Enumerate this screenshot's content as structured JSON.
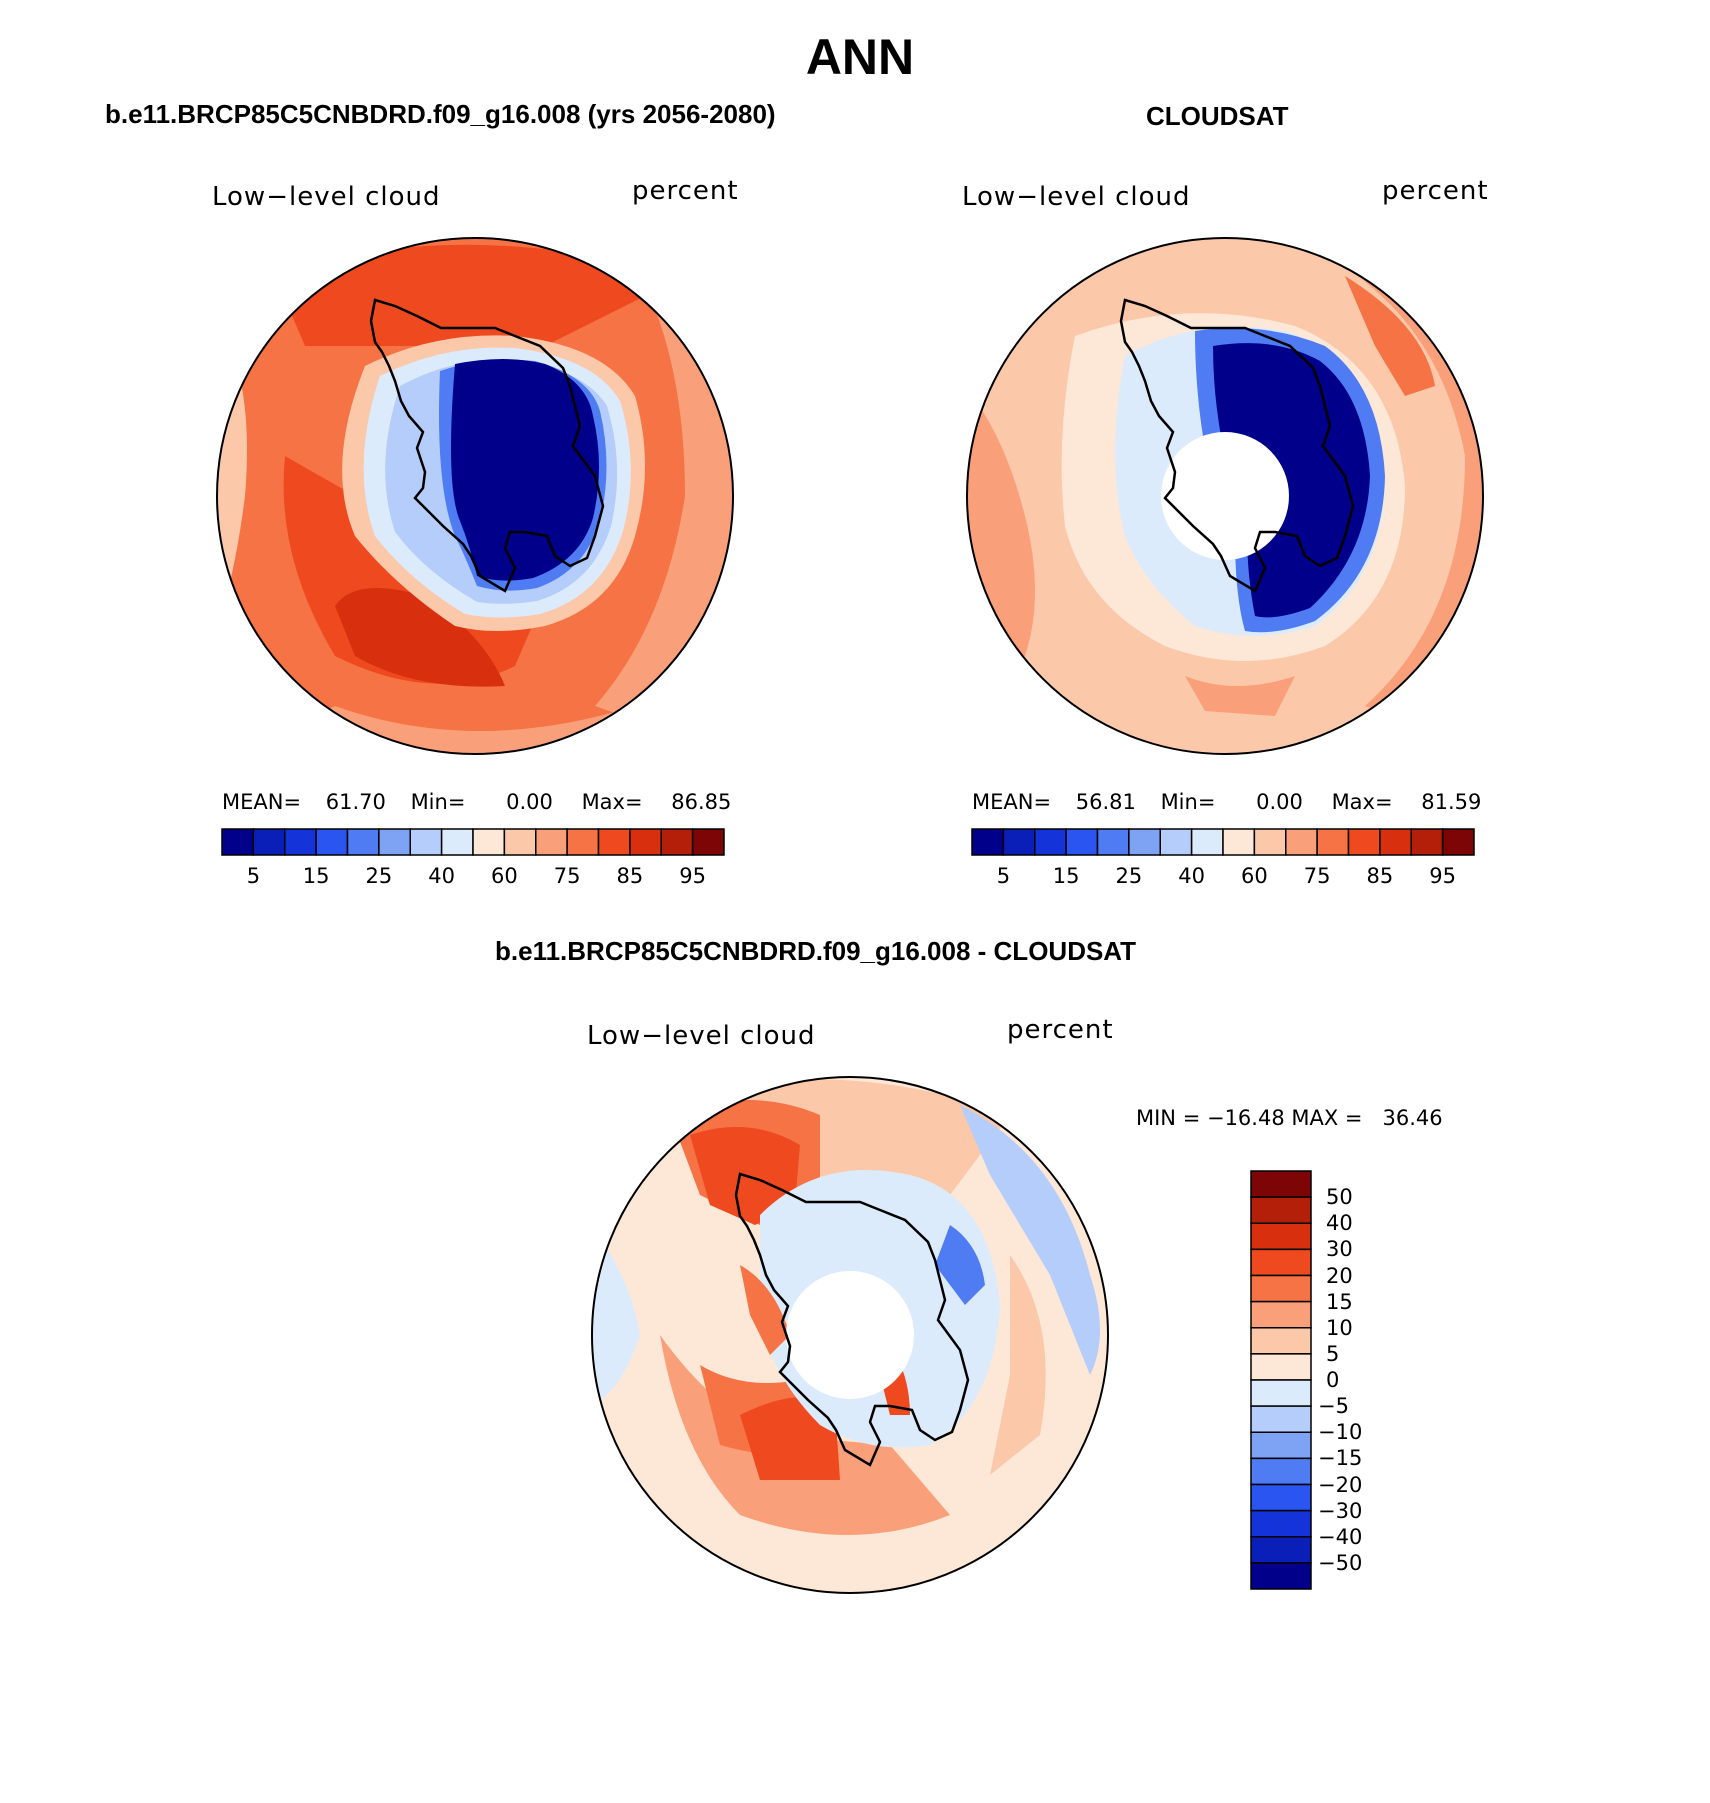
{
  "page": {
    "title": "ANN"
  },
  "panels": [
    {
      "id": "model",
      "header": "b.e11.BRCP85C5CNBDRD.f09_g16.008 (yrs 2056-2080)",
      "left_label": "Low−level cloud",
      "right_label": "percent",
      "stats": {
        "mean_label": "MEAN=",
        "mean": "61.70",
        "min_label": "Min=",
        "min": "0.00",
        "max_label": "Max=",
        "max": "86.85"
      },
      "has_polar_hole": false
    },
    {
      "id": "obs",
      "header": "CLOUDSAT",
      "left_label": "Low−level cloud",
      "right_label": "percent",
      "stats": {
        "mean_label": "MEAN=",
        "mean": "56.81",
        "min_label": "Min=",
        "min": "0.00",
        "max_label": "Max=",
        "max": "81.59"
      },
      "has_polar_hole": true
    },
    {
      "id": "diff",
      "header": "b.e11.BRCP85C5CNBDRD.f09_g16.008 - CLOUDSAT",
      "left_label": "Low−level cloud",
      "right_label": "percent",
      "minmax_text": "MIN = −16.48 MAX =   36.46",
      "has_polar_hole": true
    }
  ],
  "colorbar_abs": {
    "colors": [
      "#00008b",
      "#0a1fb8",
      "#1434d9",
      "#2b55f0",
      "#4f7bf3",
      "#7fa3f4",
      "#b4cdfa",
      "#dcebfc",
      "#fde8d8",
      "#fcc8aa",
      "#f9a07a",
      "#f57345",
      "#ef4a1f",
      "#d8300f",
      "#b41f09",
      "#7d0505"
    ],
    "tick_labels": [
      "5",
      "15",
      "25",
      "40",
      "60",
      "75",
      "85",
      "95"
    ]
  },
  "colorbar_diff": {
    "colors": [
      "#00008b",
      "#0a1fb8",
      "#1434d9",
      "#2b55f0",
      "#4f7bf3",
      "#7fa3f4",
      "#b4cdfa",
      "#dcebfc",
      "#fde8d8",
      "#fcc8aa",
      "#f9a07a",
      "#f57345",
      "#ef4a1f",
      "#d8300f",
      "#b41f09",
      "#7d0505"
    ],
    "tick_labels": [
      "50",
      "40",
      "30",
      "20",
      "15",
      "10",
      "5",
      "0",
      "−5",
      "−10",
      "−15",
      "−20",
      "−30",
      "−40",
      "−50"
    ]
  },
  "colors": {
    "coastline": "#000000",
    "outline": "#000000"
  }
}
